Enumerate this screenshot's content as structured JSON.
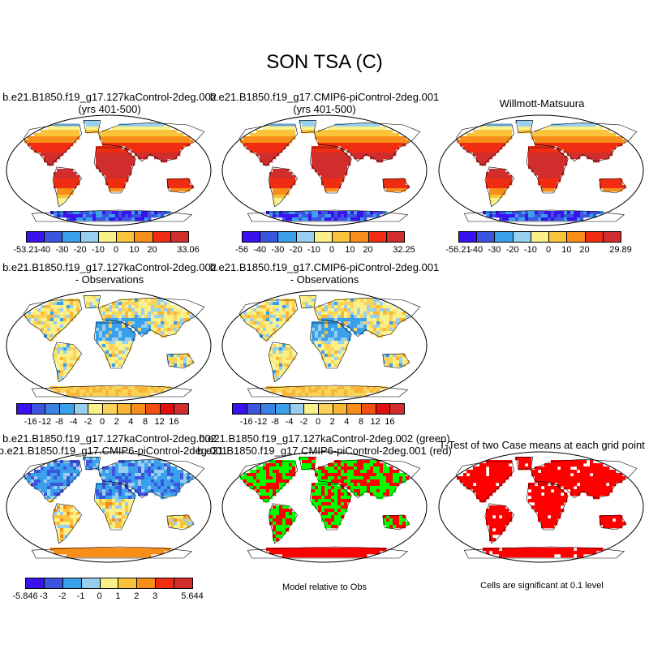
{
  "figure": {
    "title": "SON TSA (C)"
  },
  "colors": {
    "land_outline": "#000000",
    "ocean": "#ffffff",
    "sig_green": "#00ff00",
    "sig_red": "#ff0000"
  },
  "panels": [
    {
      "id": "case1",
      "title_lines": [
        "b.e21.B1850.f19_g17.127kaControl-2deg.002",
        "(yrs 401-500)"
      ],
      "field": "abs",
      "colorbar": {
        "colors": [
          "#3a12f0",
          "#3c55de",
          "#3aa0ec",
          "#98cfee",
          "#f9f08a",
          "#f9c33c",
          "#f88e1a",
          "#f02d12",
          "#d22d2d"
        ],
        "labels": [
          "-53.21",
          "-40",
          "-30",
          "-20",
          "-10",
          "0",
          "10",
          "20",
          "33.06"
        ]
      }
    },
    {
      "id": "case2",
      "title_lines": [
        "b.e21.B1850.f19_g17.CMIP6-piControl-2deg.001",
        "(yrs 401-500)"
      ],
      "field": "abs",
      "colorbar": {
        "colors": [
          "#3a12f0",
          "#3c55de",
          "#3aa0ec",
          "#98cfee",
          "#f9f08a",
          "#f9c33c",
          "#f88e1a",
          "#f02d12",
          "#d22d2d"
        ],
        "labels": [
          "-56",
          "-40",
          "-30",
          "-20",
          "-10",
          "0",
          "10",
          "20",
          "32.25"
        ]
      }
    },
    {
      "id": "obs",
      "title_lines": [
        "Willmott-Matsuura"
      ],
      "field": "abs",
      "colorbar": {
        "colors": [
          "#3a12f0",
          "#3c55de",
          "#3aa0ec",
          "#98cfee",
          "#f9f08a",
          "#f9c33c",
          "#f88e1a",
          "#f02d12",
          "#d22d2d"
        ],
        "labels": [
          "-56.21",
          "-40",
          "-30",
          "-20",
          "-10",
          "0",
          "10",
          "20",
          "29.89"
        ]
      }
    },
    {
      "id": "case1-obs",
      "title_lines": [
        "b.e21.B1850.f19_g17.127kaControl-2deg.002",
        "- Observations"
      ],
      "field": "diff",
      "colorbar": {
        "colors": [
          "#3a12f0",
          "#3c55de",
          "#3a82e6",
          "#3aa0ec",
          "#98cfee",
          "#f9f08a",
          "#f9d35a",
          "#f9b634",
          "#f88e1a",
          "#f24f12",
          "#e01010",
          "#d22d2d"
        ],
        "labels": [
          "-16",
          "-12",
          "-8",
          "-4",
          "-2",
          "0",
          "2",
          "4",
          "8",
          "12",
          "16"
        ]
      }
    },
    {
      "id": "case2-obs",
      "title_lines": [
        "b.e21.B1850.f19_g17.CMIP6-piControl-2deg.001",
        "- Observations"
      ],
      "field": "diff",
      "colorbar": {
        "colors": [
          "#3a12f0",
          "#3c55de",
          "#3a82e6",
          "#3aa0ec",
          "#98cfee",
          "#f9f08a",
          "#f9d35a",
          "#f9b634",
          "#f88e1a",
          "#f24f12",
          "#e01010",
          "#d22d2d"
        ],
        "labels": [
          "-16",
          "-12",
          "-8",
          "-4",
          "-2",
          "0",
          "2",
          "4",
          "8",
          "12",
          "16"
        ]
      }
    },
    {
      "id": "case1-case2",
      "title_lines": [
        "b.e21.B1850.f19_g17.127kaControl-2deg.002",
        "- b.e21.B1850.f19_g17.CMIP6-piControl-2deg.001"
      ],
      "field": "casediff",
      "colorbar": {
        "colors": [
          "#3a12f0",
          "#3c55de",
          "#3aa0ec",
          "#98cfee",
          "#f9f08a",
          "#f9c33c",
          "#f88e1a",
          "#f02d12",
          "#d22d2d"
        ],
        "labels": [
          "-5.846",
          "-3",
          "-2",
          "-1",
          "0",
          "1",
          "2",
          "3",
          "5.644"
        ]
      }
    },
    {
      "id": "relative",
      "title_lines": [
        "b.e21.B1850.f19_g17.127kaControl-2deg.002 (green)",
        "b.e21.B1850.f19_g17.CMIP6-piControl-2deg.001 (red)"
      ],
      "field": "relative",
      "note": "Model relative to Obs"
    },
    {
      "id": "ttest",
      "title_lines": [
        "T-Test of two Case means at each grid point"
      ],
      "field": "signif",
      "note": "Cells are significant at 0.1 level"
    }
  ],
  "chart_data": {
    "type": "heatmap",
    "title": "SON TSA (C)",
    "projection": "Robinson",
    "maps": [
      {
        "title": "b.e21.B1850.f19_g17.127kaControl-2deg.002 (yrs 401-500)",
        "min": -53.21,
        "max": 33.06,
        "levels": [
          -40,
          -30,
          -20,
          -10,
          0,
          10,
          20
        ]
      },
      {
        "title": "b.e21.B1850.f19_g17.CMIP6-piControl-2deg.001 (yrs 401-500)",
        "min": -56,
        "max": 32.25,
        "levels": [
          -40,
          -30,
          -20,
          -10,
          0,
          10,
          20
        ]
      },
      {
        "title": "Willmott-Matsuura",
        "min": -56.21,
        "max": 29.89,
        "levels": [
          -40,
          -30,
          -20,
          -10,
          0,
          10,
          20
        ]
      },
      {
        "title": "b.e21.B1850.f19_g17.127kaControl-2deg.002 - Observations",
        "levels": [
          -16,
          -12,
          -8,
          -4,
          -2,
          0,
          2,
          4,
          8,
          12,
          16
        ]
      },
      {
        "title": "b.e21.B1850.f19_g17.CMIP6-piControl-2deg.001 - Observations",
        "levels": [
          -16,
          -12,
          -8,
          -4,
          -2,
          0,
          2,
          4,
          8,
          12,
          16
        ]
      },
      {
        "title": "b.e21.B1850.f19_g17.127kaControl-2deg.002 - b.e21.B1850.f19_g17.CMIP6-piControl-2deg.001",
        "min": -5.846,
        "max": 5.644,
        "levels": [
          -3,
          -2,
          -1,
          0,
          1,
          2,
          3
        ]
      },
      {
        "title": "Model relative to Obs",
        "legend": [
          "b.e21.B1850.f19_g17.127kaControl-2deg.002 (green)",
          "b.e21.B1850.f19_g17.CMIP6-piControl-2deg.001 (red)"
        ]
      },
      {
        "title": "T-Test of two Case means at each grid point",
        "note": "Cells are significant at 0.1 level"
      }
    ]
  }
}
